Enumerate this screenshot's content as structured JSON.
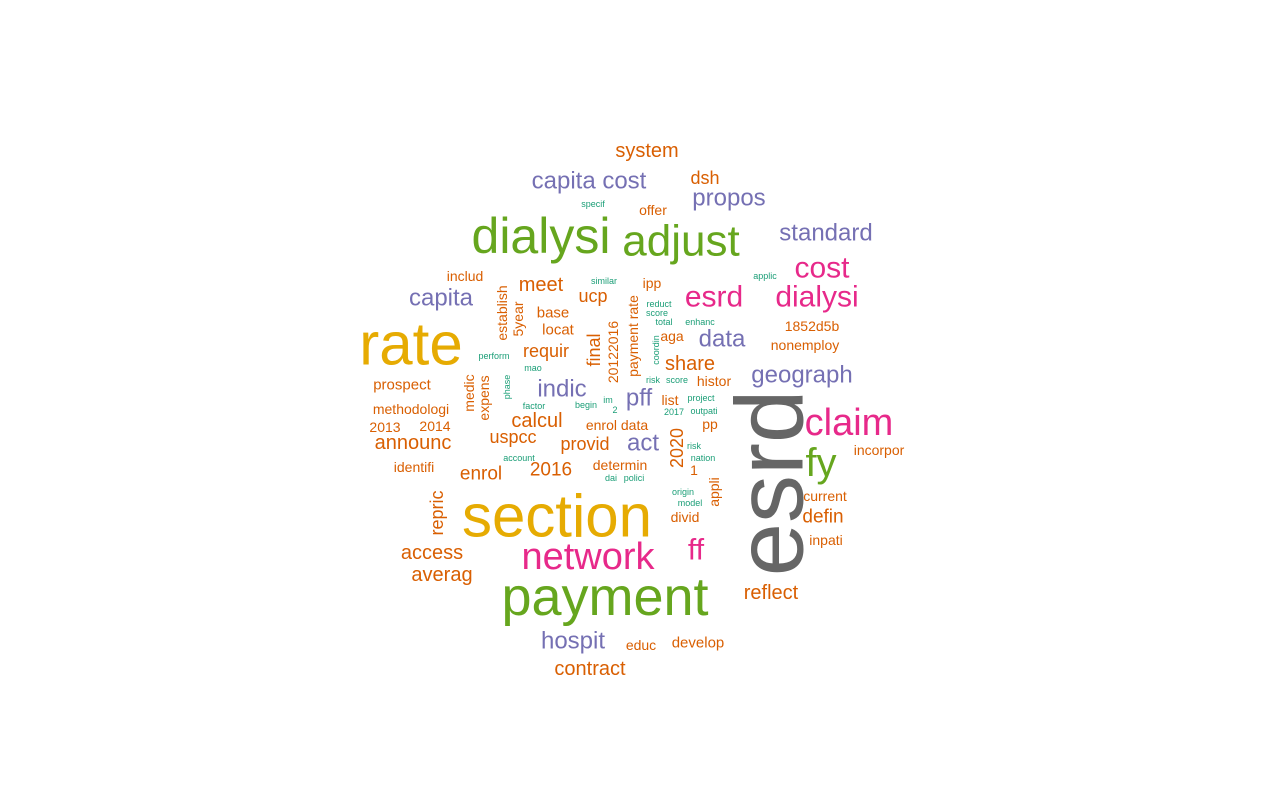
{
  "colors": {
    "gray": "#666666",
    "gold": "#e6ab02",
    "green": "#66a61e",
    "magenta": "#e7298a",
    "purple": "#7570b3",
    "orange": "#d95f02",
    "teal": "#1b9e77"
  },
  "words": [
    {
      "text": "esrd",
      "color": "gray"
    },
    {
      "text": "section",
      "color": "gold"
    },
    {
      "text": "rate",
      "color": "gold"
    },
    {
      "text": "payment",
      "color": "green"
    },
    {
      "text": "dialysi",
      "color": "green"
    },
    {
      "text": "adjust",
      "color": "green"
    },
    {
      "text": "fy",
      "color": "green"
    },
    {
      "text": "network",
      "color": "magenta"
    },
    {
      "text": "claim",
      "color": "magenta"
    },
    {
      "text": "esrd",
      "color": "magenta"
    },
    {
      "text": "dialysi",
      "color": "magenta"
    },
    {
      "text": "cost",
      "color": "magenta"
    },
    {
      "text": "ff",
      "color": "magenta"
    },
    {
      "text": "capita cost",
      "color": "purple"
    },
    {
      "text": "standard",
      "color": "purple"
    },
    {
      "text": "propos",
      "color": "purple"
    },
    {
      "text": "geograph",
      "color": "purple"
    },
    {
      "text": "hospit",
      "color": "purple"
    },
    {
      "text": "capita",
      "color": "purple"
    },
    {
      "text": "indic",
      "color": "purple"
    },
    {
      "text": "data",
      "color": "purple"
    },
    {
      "text": "pff",
      "color": "purple"
    },
    {
      "text": "act",
      "color": "purple"
    },
    {
      "text": "system",
      "color": "orange"
    },
    {
      "text": "dsh",
      "color": "orange"
    },
    {
      "text": "offer",
      "color": "orange"
    },
    {
      "text": "includ",
      "color": "orange"
    },
    {
      "text": "ipp",
      "color": "orange"
    },
    {
      "text": "meet",
      "color": "orange"
    },
    {
      "text": "ucp",
      "color": "orange"
    },
    {
      "text": "base",
      "color": "orange"
    },
    {
      "text": "locat",
      "color": "orange"
    },
    {
      "text": "requir",
      "color": "orange"
    },
    {
      "text": "final",
      "color": "orange"
    },
    {
      "text": "aga",
      "color": "orange"
    },
    {
      "text": "share",
      "color": "orange"
    },
    {
      "text": "1852d5b",
      "color": "orange"
    },
    {
      "text": "nonemploy",
      "color": "orange"
    },
    {
      "text": "prospect",
      "color": "orange"
    },
    {
      "text": "histor",
      "color": "orange"
    },
    {
      "text": "list",
      "color": "orange"
    },
    {
      "text": "methodologi",
      "color": "orange"
    },
    {
      "text": "2013",
      "color": "orange"
    },
    {
      "text": "2014",
      "color": "orange"
    },
    {
      "text": "calcul",
      "color": "orange"
    },
    {
      "text": "enrol data",
      "color": "orange"
    },
    {
      "text": "pp",
      "color": "orange"
    },
    {
      "text": "announc",
      "color": "orange"
    },
    {
      "text": "uspcc",
      "color": "orange"
    },
    {
      "text": "provid",
      "color": "orange"
    },
    {
      "text": "incorpor",
      "color": "orange"
    },
    {
      "text": "identifi",
      "color": "orange"
    },
    {
      "text": "enrol",
      "color": "orange"
    },
    {
      "text": "2016",
      "color": "orange"
    },
    {
      "text": "determin",
      "color": "orange"
    },
    {
      "text": "1",
      "color": "orange"
    },
    {
      "text": "current",
      "color": "orange"
    },
    {
      "text": "divid",
      "color": "orange"
    },
    {
      "text": "defin",
      "color": "orange"
    },
    {
      "text": "inpati",
      "color": "orange"
    },
    {
      "text": "access",
      "color": "orange"
    },
    {
      "text": "averag",
      "color": "orange"
    },
    {
      "text": "reflect",
      "color": "orange"
    },
    {
      "text": "educ",
      "color": "orange"
    },
    {
      "text": "develop",
      "color": "orange"
    },
    {
      "text": "contract",
      "color": "orange"
    },
    {
      "text": "establish",
      "color": "orange"
    },
    {
      "text": "5year",
      "color": "orange"
    },
    {
      "text": "20122016",
      "color": "orange"
    },
    {
      "text": "payment rate",
      "color": "orange"
    },
    {
      "text": "medic",
      "color": "orange"
    },
    {
      "text": "expens",
      "color": "orange"
    },
    {
      "text": "repric",
      "color": "orange"
    },
    {
      "text": "2020",
      "color": "orange"
    },
    {
      "text": "appli",
      "color": "orange"
    },
    {
      "text": "specif",
      "color": "teal"
    },
    {
      "text": "similar",
      "color": "teal"
    },
    {
      "text": "applic",
      "color": "teal"
    },
    {
      "text": "reduct",
      "color": "teal"
    },
    {
      "text": "score",
      "color": "teal"
    },
    {
      "text": "total",
      "color": "teal"
    },
    {
      "text": "enhanc",
      "color": "teal"
    },
    {
      "text": "perform",
      "color": "teal"
    },
    {
      "text": "mao",
      "color": "teal"
    },
    {
      "text": "risk",
      "color": "teal"
    },
    {
      "text": "score",
      "color": "teal"
    },
    {
      "text": "factor",
      "color": "teal"
    },
    {
      "text": "begin",
      "color": "teal"
    },
    {
      "text": "im",
      "color": "teal"
    },
    {
      "text": "2",
      "color": "teal"
    },
    {
      "text": "project",
      "color": "teal"
    },
    {
      "text": "2017",
      "color": "teal"
    },
    {
      "text": "outpati",
      "color": "teal"
    },
    {
      "text": "risk",
      "color": "teal"
    },
    {
      "text": "nation",
      "color": "teal"
    },
    {
      "text": "account",
      "color": "teal"
    },
    {
      "text": "dai",
      "color": "teal"
    },
    {
      "text": "polici",
      "color": "teal"
    },
    {
      "text": "origin",
      "color": "teal"
    },
    {
      "text": "model",
      "color": "teal"
    },
    {
      "text": "phase",
      "color": "teal"
    },
    {
      "text": "coordin",
      "color": "teal"
    }
  ]
}
